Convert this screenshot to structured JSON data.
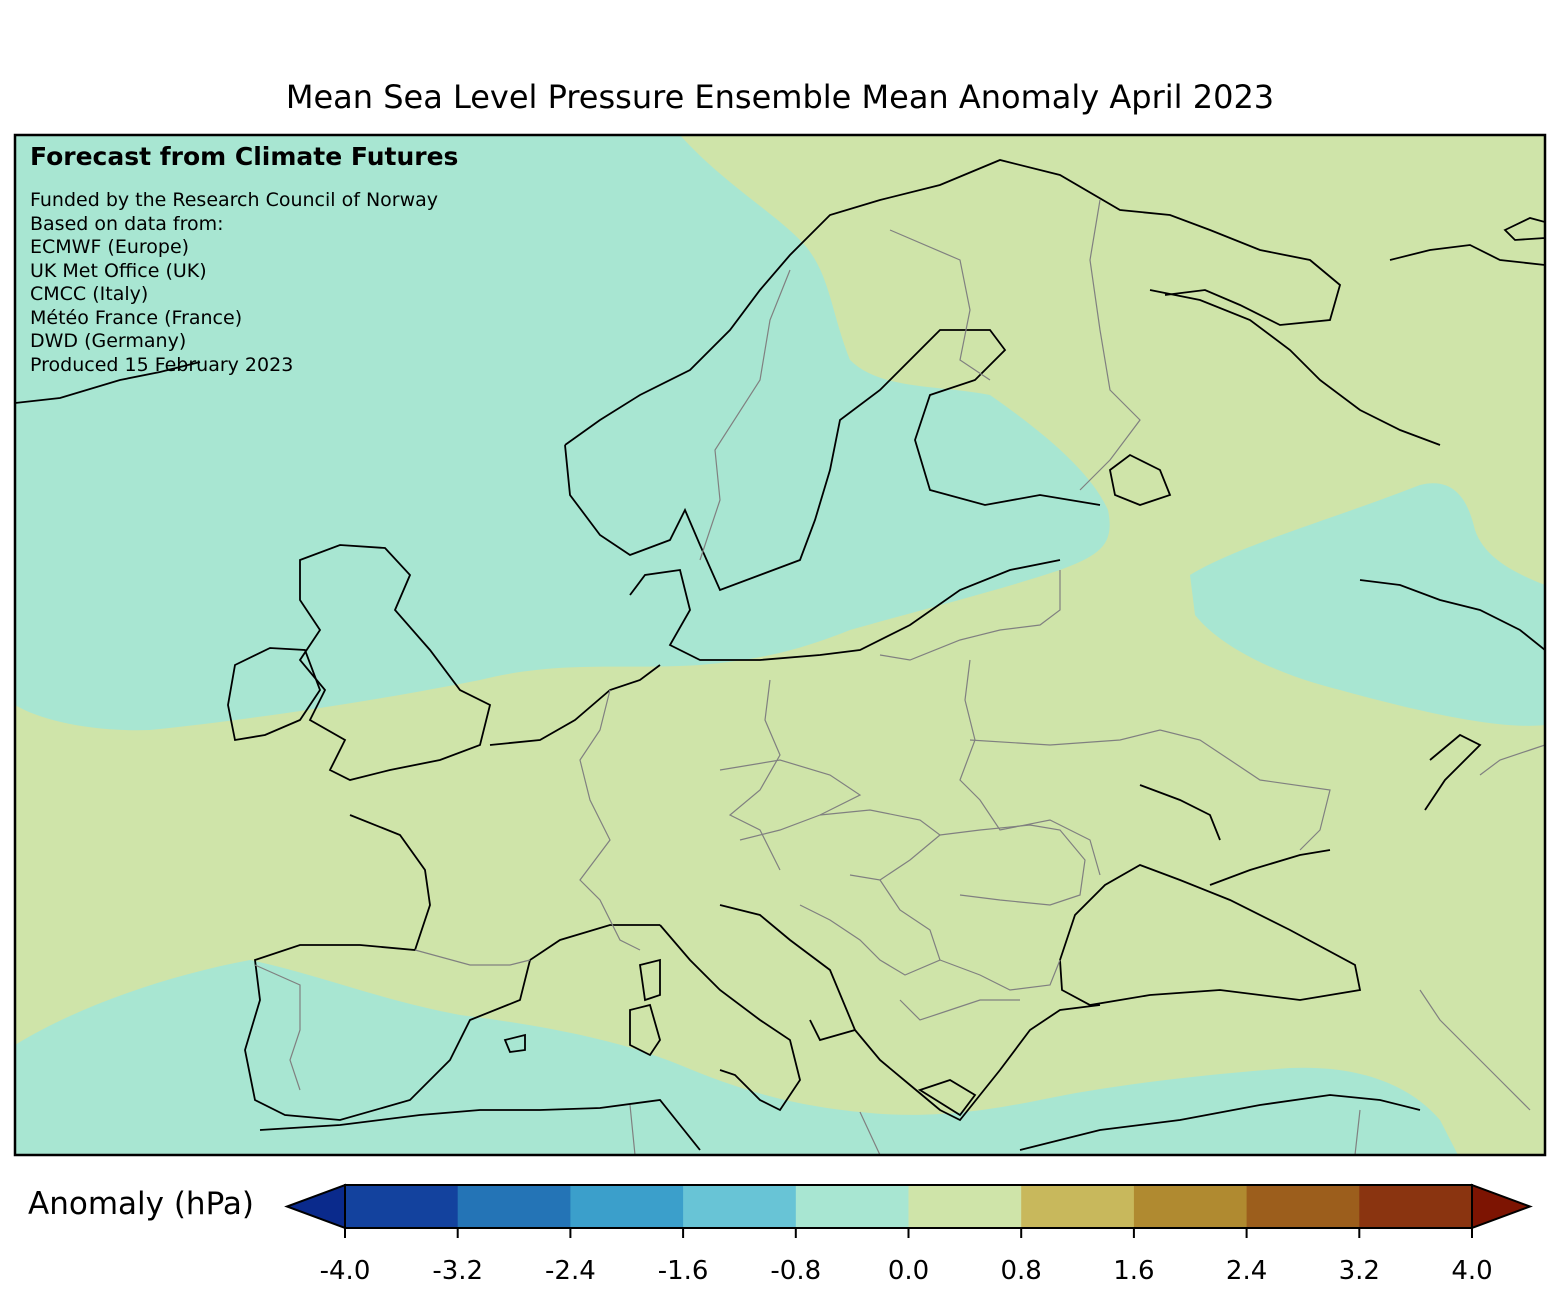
{
  "title": "Mean Sea Level Pressure Ensemble Mean Anomaly April 2023",
  "credit": {
    "heading": "Forecast from Climate Futures",
    "lines": [
      "Funded by the Research Council of Norway",
      "Based on data from:",
      "ECMWF (Europe)",
      "UK Met Office (UK)",
      "CMCC (Italy)",
      "Météo France (France)",
      "DWD (Germany)",
      "Produced 15 February 2023"
    ]
  },
  "colorbar": {
    "label": "Anomaly (hPa)",
    "ticks": [
      "-4.0",
      "-3.2",
      "-2.4",
      "-1.6",
      "-0.8",
      "0.0",
      "0.8",
      "1.6",
      "2.4",
      "3.2",
      "4.0"
    ],
    "colors": [
      "#13429e",
      "#2474b6",
      "#3b9fcb",
      "#68c4d6",
      "#a8e6d2",
      "#cfe4a9",
      "#c8b85c",
      "#b08a30",
      "#9c5e1c",
      "#8a3410"
    ],
    "extend_low_color": "#0a2a8c",
    "extend_high_color": "#7d1402"
  },
  "fill_colors": {
    "negative_anomaly": "#a8e6d2",
    "positive_anomaly": "#cfe4a9",
    "coastline": "#000000",
    "borders": "#808080"
  }
}
